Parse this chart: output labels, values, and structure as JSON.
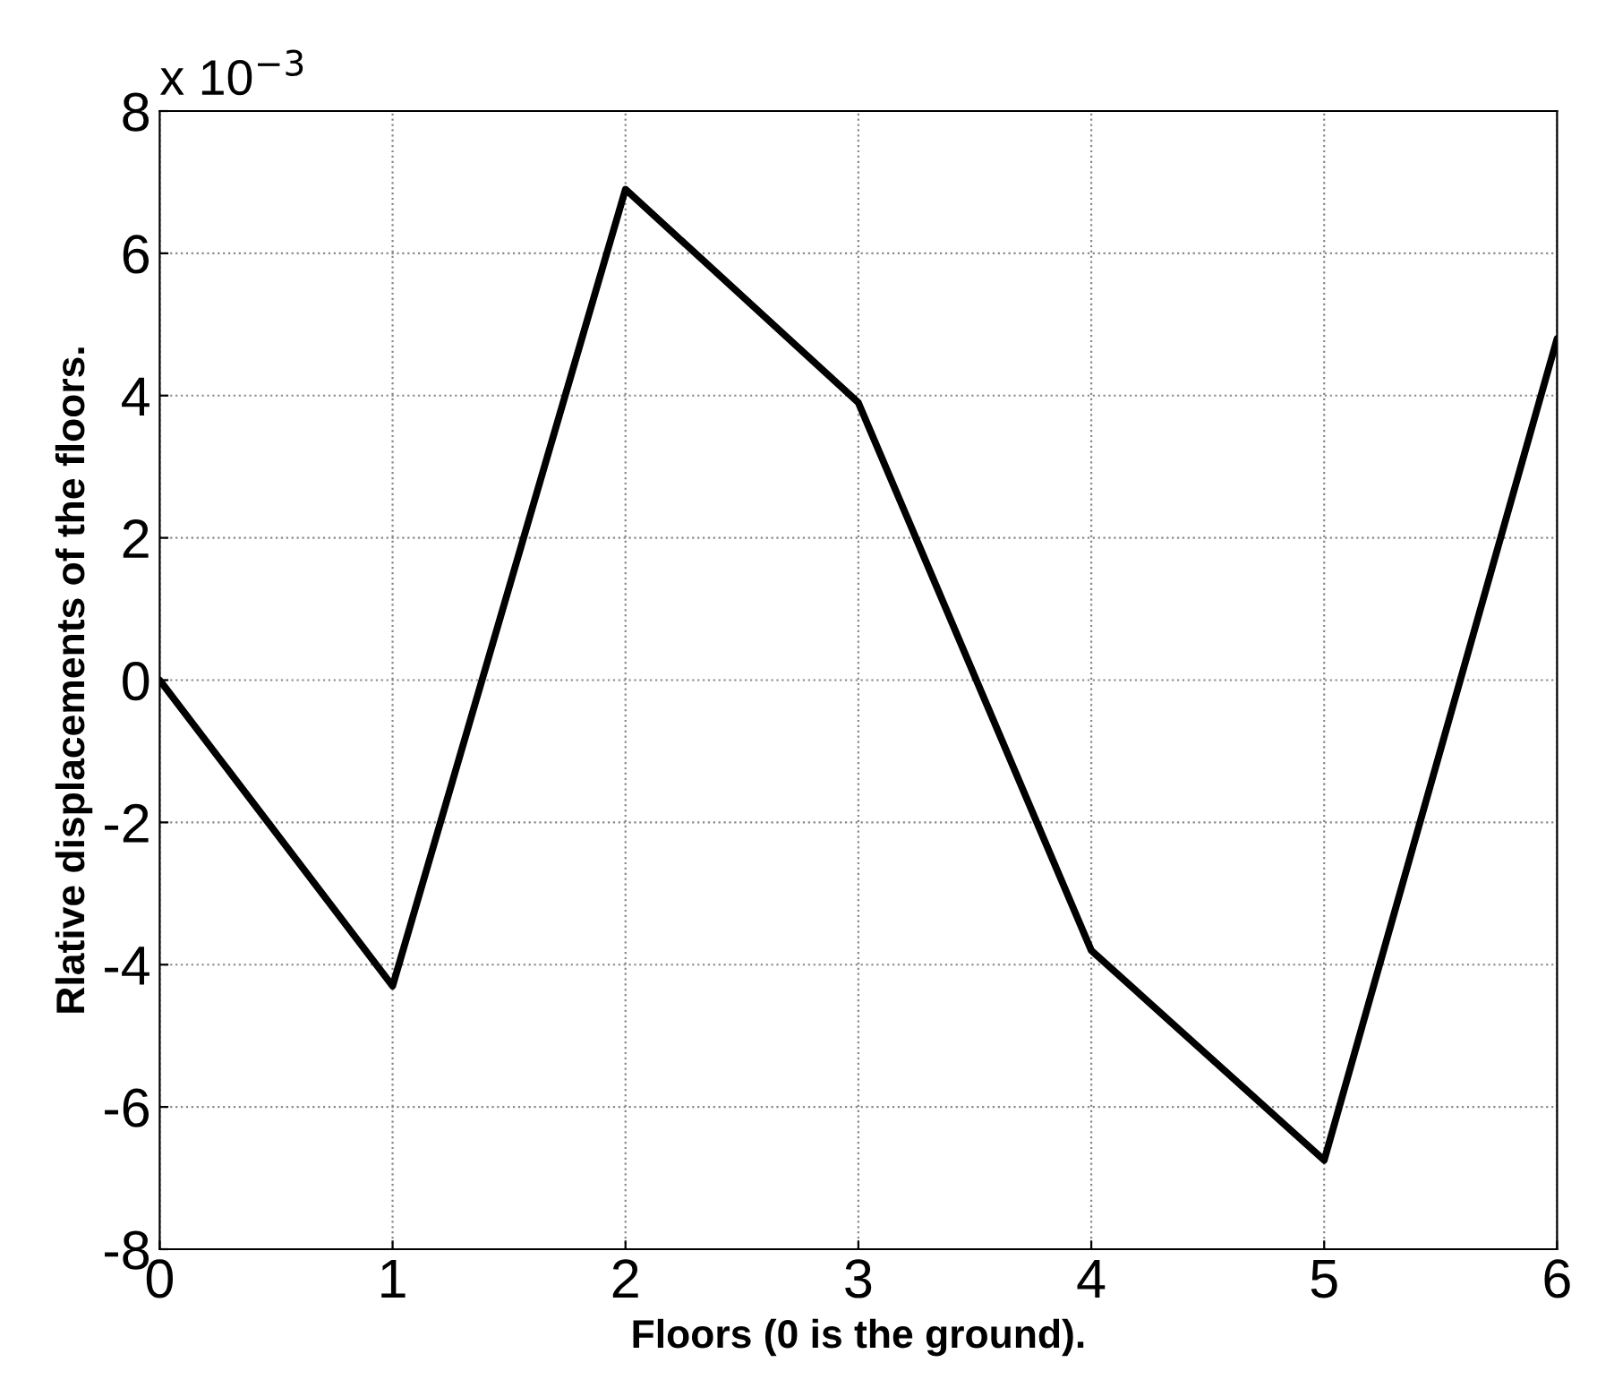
{
  "chart_data": {
    "type": "line",
    "xlabel": "Floors (0 is the ground).",
    "ylabel": "Rlative displacements of the floors.",
    "x": [
      0,
      1,
      2,
      3,
      4,
      5,
      6
    ],
    "series": [
      {
        "color": "#000000",
        "values": [
          0,
          -4.3,
          6.9,
          3.9,
          -3.8,
          -6.75,
          4.8
        ]
      }
    ],
    "xlim": [
      0,
      6
    ],
    "xticks": [
      0,
      1,
      2,
      3,
      4,
      5,
      6
    ],
    "ylim": [
      -8,
      8
    ],
    "yticks": [
      -8,
      -6,
      -4,
      -2,
      0,
      2,
      4,
      6,
      8
    ],
    "annotations": [
      "x 10$^{−3}$"
    ],
    "grid": true,
    "line_style": "solid",
    "marker": "none"
  }
}
